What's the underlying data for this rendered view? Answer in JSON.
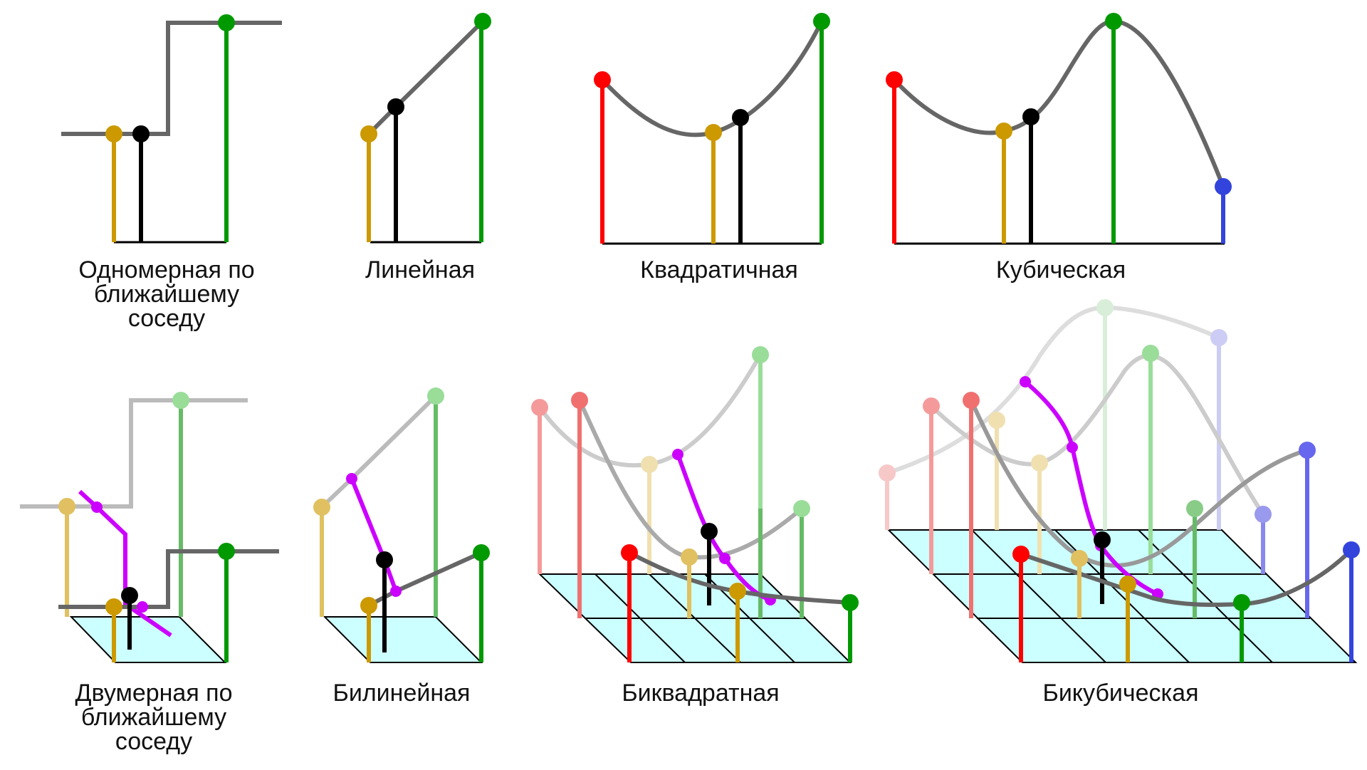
{
  "labels": {
    "nn1d": [
      "Одномерная по",
      "ближайшему",
      "соседу"
    ],
    "linear": "Линейная",
    "quadratic": "Квадратичная",
    "cubic": "Кубическая",
    "nn2d": [
      "Двумерная по",
      "ближайшему",
      "соседу"
    ],
    "bilinear": "Билинейная",
    "biquadratic": "Биквадратная",
    "bicubic": "Бикубическая"
  },
  "colors": {
    "curve": "#666666",
    "curve_faint": "#bbbbbb",
    "red": "#ff0000",
    "red_faint": "#f07070",
    "gold": "#cc9900",
    "gold_faint": "#e0c060",
    "green": "#009900",
    "green_faint": "#66bb66",
    "blue": "#3344dd",
    "blue_faint": "#8888ee",
    "black": "#000000",
    "magenta": "#cc00ff",
    "grid_fill": "#ccffff"
  }
}
